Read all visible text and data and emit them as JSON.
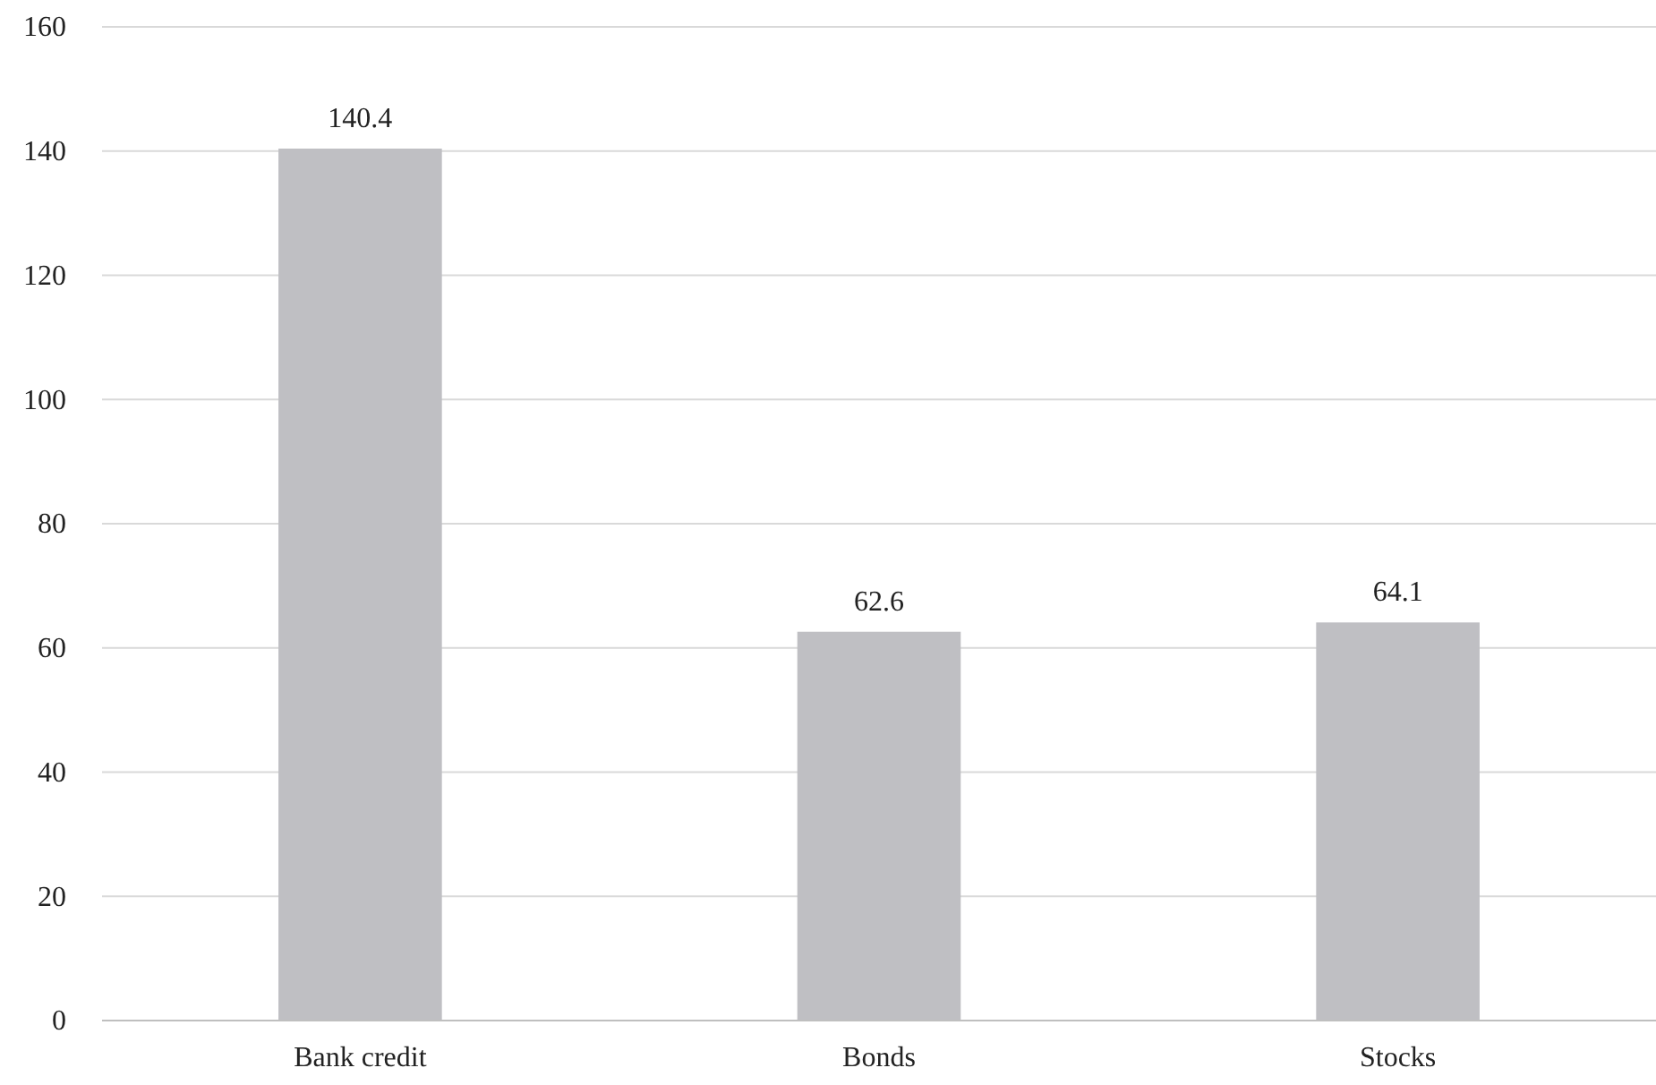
{
  "chart_data": {
    "type": "bar",
    "categories": [
      "Bank credit",
      "Bonds",
      "Stocks"
    ],
    "values": [
      140.4,
      62.6,
      64.1
    ],
    "color": "#bfbfc3",
    "ylim": [
      0,
      160
    ],
    "yticks": [
      0,
      20,
      40,
      60,
      80,
      100,
      120,
      140,
      160
    ],
    "grid": "y",
    "data_labels": true
  }
}
